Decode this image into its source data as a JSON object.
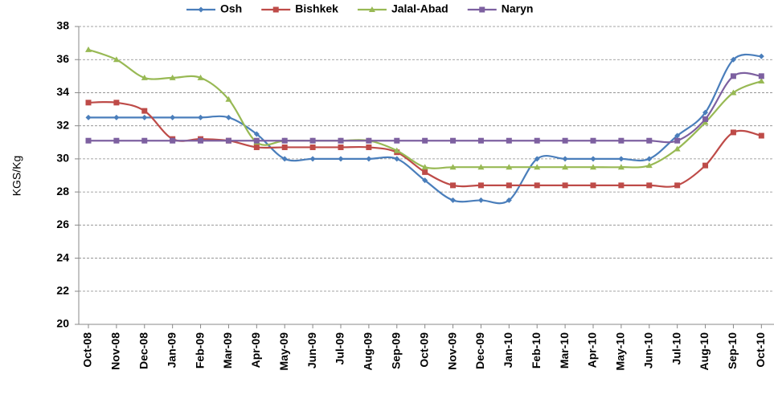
{
  "chart_data": {
    "type": "line",
    "y_label": "KGS/Kg",
    "categories": [
      "Oct-08",
      "Nov-08",
      "Dec-08",
      "Jan-09",
      "Feb-09",
      "Mar-09",
      "Apr-09",
      "May-09",
      "Jun-09",
      "Jul-09",
      "Aug-09",
      "Sep-09",
      "Oct-09",
      "Nov-09",
      "Dec-09",
      "Jan-10",
      "Feb-10",
      "Mar-10",
      "Apr-10",
      "May-10",
      "Jun-10",
      "Jul-10",
      "Aug-10",
      "Sep-10",
      "Oct-10"
    ],
    "series": [
      {
        "name": "Osh",
        "color": "#4a7ebb",
        "marker": "diamond",
        "values": [
          32.5,
          32.5,
          32.5,
          32.5,
          32.5,
          32.5,
          31.5,
          30,
          30,
          30,
          30,
          30,
          28.7,
          27.5,
          27.5,
          27.5,
          30,
          30,
          30,
          30,
          30,
          31.4,
          32.8,
          36,
          36.2
        ]
      },
      {
        "name": "Bishkek",
        "color": "#be4b48",
        "marker": "square",
        "values": [
          33.4,
          33.4,
          32.9,
          31.2,
          31.2,
          31.1,
          30.7,
          30.7,
          30.7,
          30.7,
          30.7,
          30.4,
          29.2,
          28.4,
          28.4,
          28.4,
          28.4,
          28.4,
          28.4,
          28.4,
          28.4,
          28.4,
          29.6,
          31.6,
          31.4
        ]
      },
      {
        "name": "Jalal-Abad",
        "color": "#98b954",
        "marker": "triangle",
        "values": [
          36.6,
          36,
          34.9,
          34.9,
          34.9,
          33.6,
          31,
          31.1,
          31.1,
          31.1,
          31.1,
          30.5,
          29.5,
          29.5,
          29.5,
          29.5,
          29.5,
          29.5,
          29.5,
          29.5,
          29.6,
          30.6,
          32.2,
          34,
          34.7
        ]
      },
      {
        "name": "Naryn",
        "color": "#7d60a0",
        "marker": "square",
        "values": [
          31.1,
          31.1,
          31.1,
          31.1,
          31.1,
          31.1,
          31.1,
          31.1,
          31.1,
          31.1,
          31.1,
          31.1,
          31.1,
          31.1,
          31.1,
          31.1,
          31.1,
          31.1,
          31.1,
          31.1,
          31.1,
          31.1,
          32.4,
          35,
          35
        ]
      }
    ],
    "ylim": [
      20,
      38
    ],
    "yticks": [
      20,
      22,
      24,
      26,
      28,
      30,
      32,
      34,
      36,
      38
    ],
    "grid": true,
    "legend": "top"
  }
}
